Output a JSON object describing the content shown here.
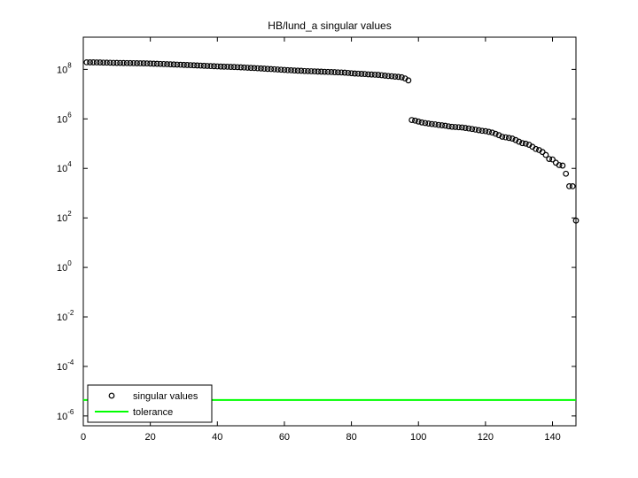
{
  "chart_data": {
    "type": "scatter",
    "title": "HB/lund_a singular values",
    "log_y": true,
    "grid": false,
    "legend": "southwest",
    "x": [
      1,
      2,
      3,
      4,
      5,
      6,
      7,
      8,
      9,
      10,
      11,
      12,
      13,
      14,
      15,
      16,
      17,
      18,
      19,
      20,
      21,
      22,
      23,
      24,
      25,
      26,
      27,
      28,
      29,
      30,
      31,
      32,
      33,
      34,
      35,
      36,
      37,
      38,
      39,
      40,
      41,
      42,
      43,
      44,
      45,
      46,
      47,
      48,
      49,
      50,
      51,
      52,
      53,
      54,
      55,
      56,
      57,
      58,
      59,
      60,
      61,
      62,
      63,
      64,
      65,
      66,
      67,
      68,
      69,
      70,
      71,
      72,
      73,
      74,
      75,
      76,
      77,
      78,
      79,
      80,
      81,
      82,
      83,
      84,
      85,
      86,
      87,
      88,
      89,
      90,
      91,
      92,
      93,
      94,
      95,
      96,
      97,
      98,
      99,
      100,
      101,
      102,
      103,
      104,
      105,
      106,
      107,
      108,
      109,
      110,
      111,
      112,
      113,
      114,
      115,
      116,
      117,
      118,
      119,
      120,
      121,
      122,
      123,
      124,
      125,
      126,
      127,
      128,
      129,
      130,
      131,
      132,
      133,
      134,
      135,
      136,
      137,
      138,
      139,
      140,
      141,
      142,
      143,
      144,
      145,
      146,
      147
    ],
    "series": [
      {
        "name": "singular values",
        "color": "#000000",
        "marker": "circle",
        "values": [
          193000000.0,
          192000000.0,
          192000000.0,
          191000000.0,
          190000000.0,
          188000000.0,
          187000000.0,
          186000000.0,
          184000000.0,
          183000000.0,
          182000000.0,
          181000000.0,
          180000000.0,
          179000000.0,
          178000000.0,
          177000000.0,
          176000000.0,
          175000000.0,
          174000000.0,
          172000000.0,
          170000000.0,
          168000000.0,
          166000000.0,
          164000000.0,
          162000000.0,
          160000000.0,
          158000000.0,
          156000000.0,
          154000000.0,
          152000000.0,
          150000000.0,
          148000000.0,
          146000000.0,
          144000000.0,
          142000000.0,
          140000000.0,
          138000000.0,
          136000000.0,
          134000000.0,
          132000000.0,
          130000000.0,
          129000000.0,
          128000000.0,
          126000000.0,
          125000000.0,
          123000000.0,
          121000000.0,
          119000000.0,
          117000000.0,
          115000000.0,
          113000000.0,
          111000000.0,
          109000000.0,
          107000000.0,
          105000000.0,
          103000000.0,
          101000000.0,
          99000000.0,
          97000000.0,
          95000000.0,
          93000000.0,
          92000000.0,
          90000000.0,
          89000000.0,
          88000000.0,
          86000000.0,
          85000000.0,
          84000000.0,
          83000000.0,
          82000000.0,
          81000000.0,
          80000000.0,
          79000000.0,
          78000000.0,
          77000000.0,
          76000000.0,
          75000000.0,
          74000000.0,
          72000000.0,
          70000000.0,
          68000000.0,
          67000000.0,
          66000000.0,
          65000000.0,
          63000000.0,
          62000000.0,
          61000000.0,
          60000000.0,
          58000000.0,
          56000000.0,
          54000000.0,
          53000000.0,
          51000000.0,
          50000000.0,
          48000000.0,
          43000000.0,
          36000000.0,
          900000.0,
          850000.0,
          780000.0,
          720000.0,
          680000.0,
          650000.0,
          620000.0,
          600000.0,
          570000.0,
          550000.0,
          530000.0,
          500000.0,
          480000.0,
          470000.0,
          460000.0,
          450000.0,
          430000.0,
          410000.0,
          390000.0,
          370000.0,
          350000.0,
          330000.0,
          320000.0,
          300000.0,
          280000.0,
          250000.0,
          220000.0,
          190000.0,
          180000.0,
          170000.0,
          160000.0,
          140000.0,
          120000.0,
          105000.0,
          100000.0,
          90000.0,
          75000.0,
          61000.0,
          55000.0,
          46000.0,
          35000.0,
          24000.0,
          23000.0,
          17000.0,
          13600.0,
          13000.0,
          6100.0,
          1900.0,
          1900.0,
          78
        ]
      }
    ],
    "reference_lines": [
      {
        "name": "tolerance",
        "color": "#00ff00",
        "value": 4.4e-06
      }
    ],
    "xlim": [
      0,
      147
    ],
    "xticks": [
      0,
      20,
      40,
      60,
      80,
      100,
      120,
      140
    ],
    "ylim": [
      4e-07,
      2000000000.0
    ],
    "yticks": [
      {
        "value": 1e-06,
        "label": "10",
        "exponent": "-6"
      },
      {
        "value": 0.0001,
        "label": "10",
        "exponent": "-4"
      },
      {
        "value": 0.01,
        "label": "10",
        "exponent": "-2"
      },
      {
        "value": 1,
        "label": "10",
        "exponent": "0"
      },
      {
        "value": 100,
        "label": "10",
        "exponent": "2"
      },
      {
        "value": 10000,
        "label": "10",
        "exponent": "4"
      },
      {
        "value": 1000000,
        "label": "10",
        "exponent": "6"
      },
      {
        "value": 100000000,
        "label": "10",
        "exponent": "8"
      }
    ]
  }
}
